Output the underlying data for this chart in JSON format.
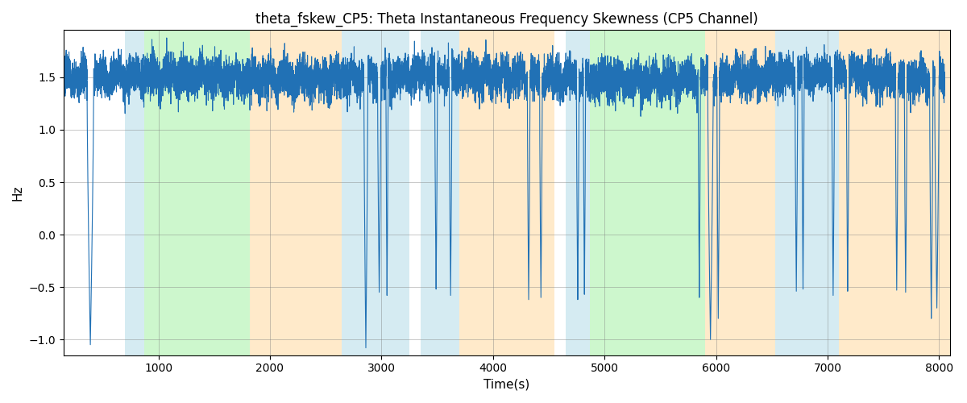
{
  "title": "theta_fskew_CP5: Theta Instantaneous Frequency Skewness (CP5 Channel)",
  "xlabel": "Time(s)",
  "ylabel": "Hz",
  "xlim": [
    150,
    8100
  ],
  "ylim": [
    -1.15,
    1.95
  ],
  "line_color": "#2171b5",
  "line_width": 0.8,
  "background_color": "#ffffff",
  "shaded_regions": [
    {
      "xmin": 700,
      "xmax": 870,
      "color": "#add8e6",
      "alpha": 0.5
    },
    {
      "xmin": 870,
      "xmax": 1820,
      "color": "#90ee90",
      "alpha": 0.45
    },
    {
      "xmin": 1820,
      "xmax": 2640,
      "color": "#ffd9a0",
      "alpha": 0.55
    },
    {
      "xmin": 2640,
      "xmax": 3250,
      "color": "#add8e6",
      "alpha": 0.5
    },
    {
      "xmin": 3350,
      "xmax": 3700,
      "color": "#add8e6",
      "alpha": 0.5
    },
    {
      "xmin": 3700,
      "xmax": 4550,
      "color": "#ffd9a0",
      "alpha": 0.55
    },
    {
      "xmin": 4650,
      "xmax": 4870,
      "color": "#add8e6",
      "alpha": 0.5
    },
    {
      "xmin": 4870,
      "xmax": 5900,
      "color": "#90ee90",
      "alpha": 0.45
    },
    {
      "xmin": 5900,
      "xmax": 6530,
      "color": "#ffd9a0",
      "alpha": 0.55
    },
    {
      "xmin": 6530,
      "xmax": 7100,
      "color": "#add8e6",
      "alpha": 0.5
    },
    {
      "xmin": 7100,
      "xmax": 8100,
      "color": "#ffd9a0",
      "alpha": 0.55
    }
  ],
  "t_start": 150,
  "t_end": 8050,
  "n_points": 15800,
  "seed": 7
}
